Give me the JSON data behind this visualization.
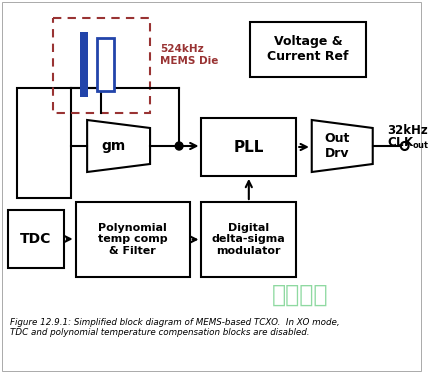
{
  "title": "Figure 12.9.1: Simplified block diagram of MEMS-based TCXO.  In XO mode,\nTDC and polynomial temperature compensation blocks are disabled.",
  "bg_color": "#ffffff",
  "mems_label": "524kHz\nMEMS Die",
  "voltage_label": "Voltage &\nCurrent Ref",
  "gm_label": "gm",
  "pll_label": "PLL",
  "out_drv_label": "Out\nDrv",
  "clk_label1": "32kHz",
  "clk_label2": "CLK",
  "clk_sub": "out",
  "tdc_label": "TDC",
  "poly_label": "Polynomial\ntemp comp\n& Filter",
  "delta_label": "Digital\ndelta-sigma\nmodulator",
  "watermark_color": "#33bb55",
  "watermark_text": "壹兆电子",
  "line_color": "#000000",
  "mems_dashed_color": "#993333",
  "resonator_color": "#2244aa"
}
